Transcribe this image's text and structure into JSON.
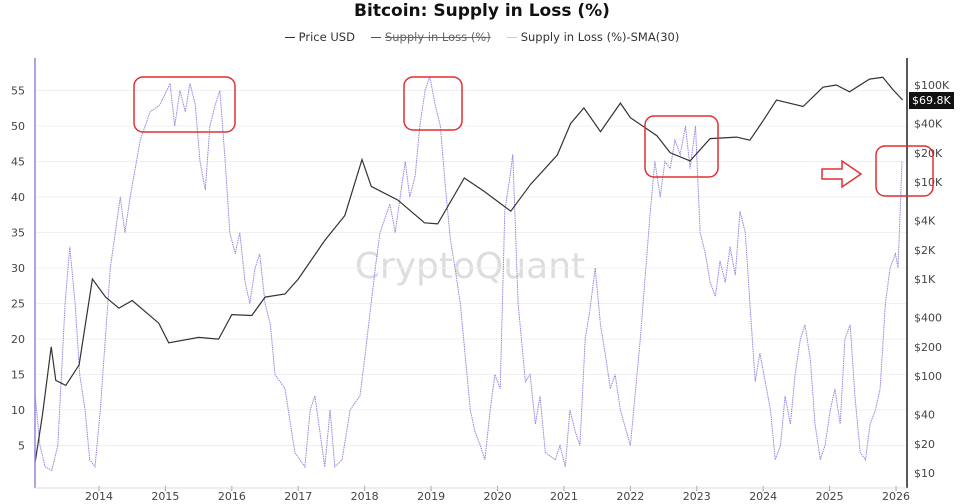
{
  "chart_data": {
    "type": "line",
    "title": "Bitcoin: Supply in Loss (%)",
    "legend": [
      {
        "label": "Price USD",
        "color": "#333333",
        "visible": true
      },
      {
        "label": "Supply in Loss (%)",
        "color": "#555555",
        "visible": false
      },
      {
        "label": "Supply in Loss (%)-SMA(30)",
        "color": "#8f86e0",
        "visible": true
      }
    ],
    "watermark": "CryptoQuant",
    "x_ticks": [
      "2014",
      "2015",
      "2016",
      "2017",
      "2018",
      "2019",
      "2020",
      "2021",
      "2022",
      "2023",
      "2024",
      "2025",
      "2026"
    ],
    "y_left_ticks": [
      "5",
      "10",
      "15",
      "20",
      "25",
      "30",
      "35",
      "40",
      "45",
      "50",
      "55"
    ],
    "y_left_range": [
      0,
      58
    ],
    "y_right_ticks": [
      {
        "label": "$10",
        "value": 10
      },
      {
        "label": "$20",
        "value": 20
      },
      {
        "label": "$40",
        "value": 40
      },
      {
        "label": "$100",
        "value": 100
      },
      {
        "label": "$200",
        "value": 200
      },
      {
        "label": "$400",
        "value": 400
      },
      {
        "label": "$1K",
        "value": 1000
      },
      {
        "label": "$2K",
        "value": 2000
      },
      {
        "label": "$4K",
        "value": 4000
      },
      {
        "label": "$10K",
        "value": 10000
      },
      {
        "label": "$20K",
        "value": 20000
      },
      {
        "label": "$40K",
        "value": 40000
      },
      {
        "label": "$100K",
        "value": 100000
      }
    ],
    "y_right_scale": "log",
    "current_price_label": "$69.8K",
    "price_series": [
      [
        2013.04,
        13
      ],
      [
        2013.15,
        40
      ],
      [
        2013.28,
        200
      ],
      [
        2013.35,
        90
      ],
      [
        2013.5,
        80
      ],
      [
        2013.7,
        130
      ],
      [
        2013.9,
        1000
      ],
      [
        2014.1,
        650
      ],
      [
        2014.3,
        500
      ],
      [
        2014.5,
        600
      ],
      [
        2014.9,
        350
      ],
      [
        2015.05,
        220
      ],
      [
        2015.5,
        250
      ],
      [
        2015.8,
        240
      ],
      [
        2016.0,
        430
      ],
      [
        2016.3,
        420
      ],
      [
        2016.5,
        650
      ],
      [
        2016.8,
        700
      ],
      [
        2017.0,
        1000
      ],
      [
        2017.4,
        2500
      ],
      [
        2017.7,
        4500
      ],
      [
        2017.96,
        17000
      ],
      [
        2018.1,
        9000
      ],
      [
        2018.5,
        6500
      ],
      [
        2018.9,
        3800
      ],
      [
        2019.1,
        3700
      ],
      [
        2019.5,
        11000
      ],
      [
        2019.8,
        8000
      ],
      [
        2020.2,
        5000
      ],
      [
        2020.5,
        9500
      ],
      [
        2020.9,
        19000
      ],
      [
        2021.1,
        40000
      ],
      [
        2021.3,
        58000
      ],
      [
        2021.55,
        33000
      ],
      [
        2021.85,
        65000
      ],
      [
        2022.0,
        46000
      ],
      [
        2022.4,
        30000
      ],
      [
        2022.6,
        20000
      ],
      [
        2022.9,
        16500
      ],
      [
        2023.2,
        28000
      ],
      [
        2023.6,
        29000
      ],
      [
        2023.8,
        27000
      ],
      [
        2024.0,
        43000
      ],
      [
        2024.2,
        70000
      ],
      [
        2024.6,
        60000
      ],
      [
        2024.9,
        95000
      ],
      [
        2025.1,
        100000
      ],
      [
        2025.3,
        85000
      ],
      [
        2025.6,
        115000
      ],
      [
        2025.8,
        120000
      ],
      [
        2025.95,
        90000
      ],
      [
        2026.1,
        69800
      ]
    ],
    "sma_series": [
      [
        2013.04,
        12
      ],
      [
        2013.11,
        5
      ],
      [
        2013.19,
        2
      ],
      [
        2013.29,
        1.5
      ],
      [
        2013.38,
        5
      ],
      [
        2013.49,
        25
      ],
      [
        2013.56,
        33
      ],
      [
        2013.64,
        25
      ],
      [
        2013.71,
        15
      ],
      [
        2013.79,
        10
      ],
      [
        2013.86,
        3
      ],
      [
        2013.94,
        2
      ],
      [
        2014.02,
        10
      ],
      [
        2014.17,
        30
      ],
      [
        2014.32,
        40
      ],
      [
        2014.39,
        35
      ],
      [
        2014.47,
        40
      ],
      [
        2014.62,
        48
      ],
      [
        2014.77,
        52
      ],
      [
        2014.92,
        53
      ],
      [
        2015.07,
        56
      ],
      [
        2015.14,
        50
      ],
      [
        2015.22,
        55
      ],
      [
        2015.3,
        52
      ],
      [
        2015.37,
        56
      ],
      [
        2015.45,
        53
      ],
      [
        2015.52,
        45
      ],
      [
        2015.6,
        41
      ],
      [
        2015.67,
        50
      ],
      [
        2015.75,
        53
      ],
      [
        2015.82,
        55
      ],
      [
        2015.9,
        45
      ],
      [
        2015.97,
        35
      ],
      [
        2016.05,
        32
      ],
      [
        2016.12,
        35
      ],
      [
        2016.2,
        28
      ],
      [
        2016.27,
        25
      ],
      [
        2016.35,
        30
      ],
      [
        2016.42,
        32
      ],
      [
        2016.5,
        25
      ],
      [
        2016.58,
        22
      ],
      [
        2016.65,
        15
      ],
      [
        2016.8,
        13
      ],
      [
        2016.95,
        4
      ],
      [
        2017.1,
        2
      ],
      [
        2017.18,
        10
      ],
      [
        2017.25,
        12
      ],
      [
        2017.4,
        2
      ],
      [
        2017.48,
        10
      ],
      [
        2017.55,
        2
      ],
      [
        2017.66,
        3
      ],
      [
        2017.78,
        10
      ],
      [
        2017.93,
        12
      ],
      [
        2018.01,
        18
      ],
      [
        2018.16,
        30
      ],
      [
        2018.23,
        35
      ],
      [
        2018.38,
        39
      ],
      [
        2018.46,
        35
      ],
      [
        2018.61,
        45
      ],
      [
        2018.68,
        40
      ],
      [
        2018.76,
        43
      ],
      [
        2018.83,
        50
      ],
      [
        2018.91,
        55
      ],
      [
        2018.98,
        57
      ],
      [
        2019.06,
        53
      ],
      [
        2019.14,
        50
      ],
      [
        2019.21,
        42
      ],
      [
        2019.29,
        34
      ],
      [
        2019.36,
        30
      ],
      [
        2019.44,
        25
      ],
      [
        2019.51,
        18
      ],
      [
        2019.59,
        10
      ],
      [
        2019.66,
        7
      ],
      [
        2019.74,
        5
      ],
      [
        2019.81,
        3
      ],
      [
        2019.89,
        10
      ],
      [
        2019.96,
        15
      ],
      [
        2020.04,
        13
      ],
      [
        2020.11,
        38
      ],
      [
        2020.19,
        43
      ],
      [
        2020.23,
        46
      ],
      [
        2020.31,
        25
      ],
      [
        2020.42,
        14
      ],
      [
        2020.49,
        15
      ],
      [
        2020.57,
        8
      ],
      [
        2020.64,
        12
      ],
      [
        2020.72,
        4
      ],
      [
        2020.87,
        3
      ],
      [
        2020.94,
        5
      ],
      [
        2021.02,
        2
      ],
      [
        2021.09,
        10
      ],
      [
        2021.17,
        7
      ],
      [
        2021.24,
        5
      ],
      [
        2021.32,
        20
      ],
      [
        2021.39,
        24
      ],
      [
        2021.47,
        30
      ],
      [
        2021.55,
        22
      ],
      [
        2021.62,
        18
      ],
      [
        2021.7,
        13
      ],
      [
        2021.77,
        15
      ],
      [
        2021.85,
        10
      ],
      [
        2022.0,
        5
      ],
      [
        2022.15,
        20
      ],
      [
        2022.3,
        38
      ],
      [
        2022.37,
        45
      ],
      [
        2022.45,
        40
      ],
      [
        2022.52,
        45
      ],
      [
        2022.6,
        44
      ],
      [
        2022.67,
        48
      ],
      [
        2022.75,
        46
      ],
      [
        2022.83,
        50
      ],
      [
        2022.9,
        44
      ],
      [
        2022.98,
        50
      ],
      [
        2023.05,
        35
      ],
      [
        2023.13,
        32
      ],
      [
        2023.2,
        28
      ],
      [
        2023.28,
        26
      ],
      [
        2023.35,
        31
      ],
      [
        2023.43,
        28
      ],
      [
        2023.5,
        33
      ],
      [
        2023.58,
        29
      ],
      [
        2023.65,
        38
      ],
      [
        2023.73,
        35
      ],
      [
        2023.8,
        25
      ],
      [
        2023.88,
        14
      ],
      [
        2023.95,
        18
      ],
      [
        2024.03,
        14
      ],
      [
        2024.11,
        10
      ],
      [
        2024.18,
        3
      ],
      [
        2024.26,
        5
      ],
      [
        2024.33,
        12
      ],
      [
        2024.41,
        8
      ],
      [
        2024.48,
        15
      ],
      [
        2024.56,
        20
      ],
      [
        2024.63,
        22
      ],
      [
        2024.71,
        17
      ],
      [
        2024.78,
        8
      ],
      [
        2024.86,
        3
      ],
      [
        2024.93,
        5
      ],
      [
        2025.01,
        10
      ],
      [
        2025.08,
        13
      ],
      [
        2025.16,
        8
      ],
      [
        2025.23,
        20
      ],
      [
        2025.31,
        22
      ],
      [
        2025.38,
        12
      ],
      [
        2025.46,
        4
      ],
      [
        2025.54,
        3
      ],
      [
        2025.61,
        8
      ],
      [
        2025.69,
        10
      ],
      [
        2025.76,
        13
      ],
      [
        2025.84,
        25
      ],
      [
        2025.91,
        30
      ],
      [
        2025.99,
        32
      ],
      [
        2026.03,
        30
      ],
      [
        2026.09,
        45
      ]
    ]
  }
}
